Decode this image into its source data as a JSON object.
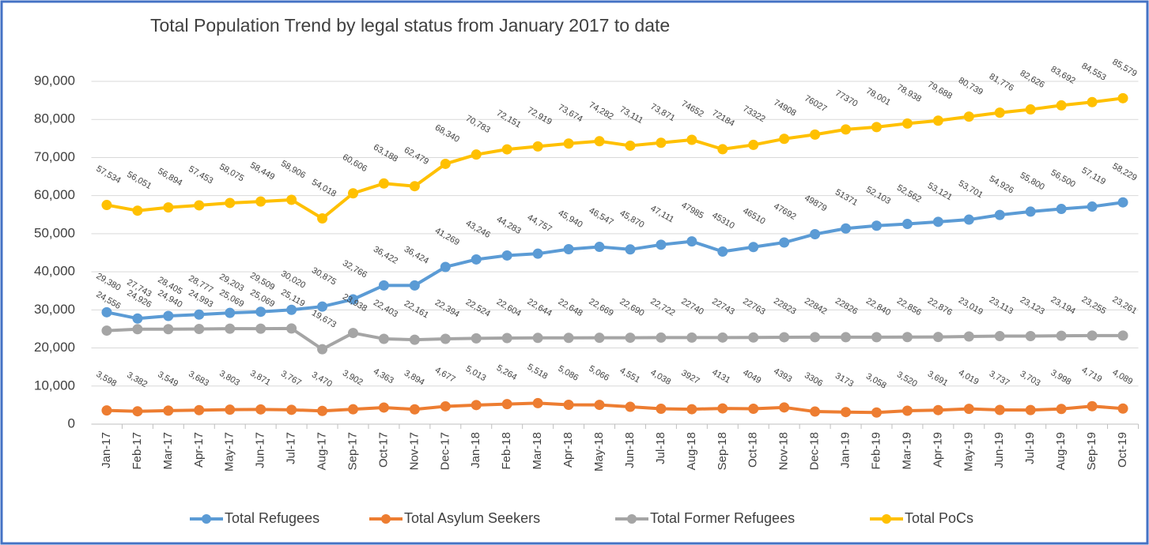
{
  "chart_data": {
    "type": "line",
    "title": "Total Population Trend by legal status from January 2017 to date",
    "categories": [
      "Jan-17",
      "Feb-17",
      "Mar-17",
      "Apr-17",
      "May-17",
      "Jun-17",
      "Jul-17",
      "Aug-17",
      "Sep-17",
      "Oct-17",
      "Nov-17",
      "Dec-17",
      "Jan-18",
      "Feb-18",
      "Mar-18",
      "Apr-18",
      "May-18",
      "Jun-18",
      "Jul-18",
      "Aug-18",
      "Sep-18",
      "Oct-18",
      "Nov-18",
      "Dec-18",
      "Jan-19",
      "Feb-19",
      "Mar-19",
      "Apr-19",
      "May-19",
      "Jun-19",
      "Jul-19",
      "Aug-19",
      "Sep-19",
      "Oct-19"
    ],
    "series": [
      {
        "name": "Total Refugees",
        "color": "#5b9bd5",
        "values": [
          29380,
          27743,
          28405,
          28777,
          29203,
          29509,
          30020,
          30875,
          32766,
          36422,
          36424,
          41269,
          43246,
          44283,
          44757,
          45940,
          46547,
          45870,
          47111,
          47985,
          45310,
          46510,
          47692,
          49879,
          51371,
          52103,
          52562,
          53121,
          53701,
          54926,
          55800,
          56500,
          57119,
          58229
        ],
        "value_labels": [
          "29,380",
          "27,743",
          "28,405",
          "28,777",
          "29,203",
          "29,509",
          "30,020",
          "30,875",
          "32,766",
          "36,422",
          "36,424",
          "41,269",
          "43,246",
          "44,283",
          "44,757",
          "45,940",
          "46,547",
          "45,870",
          "47,111",
          "47985",
          "45310",
          "46510",
          "47692",
          "49879",
          "51371",
          "52,103",
          "52,562",
          "53,121",
          "53,701",
          "54,926",
          "55,800",
          "56,500",
          "57,119",
          "58,229"
        ]
      },
      {
        "name": "Total Asylum Seekers",
        "color": "#ed7d31",
        "values": [
          3598,
          3382,
          3549,
          3683,
          3803,
          3871,
          3767,
          3470,
          3902,
          4363,
          3894,
          4677,
          5013,
          5264,
          5518,
          5086,
          5066,
          4551,
          4038,
          3927,
          4131,
          4049,
          4393,
          3306,
          3173,
          3058,
          3520,
          3691,
          4019,
          3737,
          3703,
          3998,
          4719,
          4089
        ],
        "value_labels": [
          "3,598",
          "3,382",
          "3,549",
          "3,683",
          "3,803",
          "3,871",
          "3,767",
          "3,470",
          "3,902",
          "4,363",
          "3,894",
          "4,677",
          "5,013",
          "5,264",
          "5,518",
          "5,086",
          "5,066",
          "4,551",
          "4,038",
          "3927",
          "4131",
          "4049",
          "4393",
          "3306",
          "3173",
          "3,058",
          "3,520",
          "3,691",
          "4,019",
          "3,737",
          "3,703",
          "3,998",
          "4,719",
          "4,089"
        ]
      },
      {
        "name": "Total Former Refugees",
        "color": "#a5a5a5",
        "values": [
          24556,
          24926,
          24940,
          24993,
          25069,
          25069,
          25119,
          19673,
          23938,
          22403,
          22161,
          22394,
          22524,
          22604,
          22644,
          22648,
          22669,
          22690,
          22722,
          22740,
          22743,
          22763,
          22823,
          22842,
          22826,
          22840,
          22856,
          22876,
          23019,
          23113,
          23123,
          23194,
          23255,
          23261
        ],
        "value_labels": [
          "24,556",
          "24,926",
          "24,940",
          "24,993",
          "25,069",
          "25,069",
          "25,119",
          "19,673",
          "23,938",
          "22,403",
          "22,161",
          "22,394",
          "22,524",
          "22,604",
          "22,644",
          "22,648",
          "22,669",
          "22,690",
          "22,722",
          "22740",
          "22743",
          "22763",
          "22823",
          "22842",
          "22826",
          "22,840",
          "22,856",
          "22,876",
          "23,019",
          "23,113",
          "23,123",
          "23,194",
          "23,255",
          "23,261"
        ]
      },
      {
        "name": "Total PoCs",
        "color": "#ffc000",
        "values": [
          57534,
          56051,
          56894,
          57453,
          58075,
          58449,
          58906,
          54018,
          60606,
          63188,
          62479,
          68340,
          70783,
          72151,
          72919,
          73674,
          74282,
          73111,
          73871,
          74652,
          72184,
          73322,
          74908,
          76027,
          77370,
          78001,
          78938,
          79688,
          80739,
          81776,
          82626,
          83692,
          84553,
          85579
        ],
        "value_labels": [
          "57,534",
          "56,051",
          "56,894",
          "57,453",
          "58,075",
          "58,449",
          "58,906",
          "54,018",
          "60,606",
          "63,188",
          "62,479",
          "68,340",
          "70,783",
          "72,151",
          "72,919",
          "73,674",
          "74,282",
          "73,111",
          "73,871",
          "74652",
          "72184",
          "73322",
          "74908",
          "76027",
          "77370",
          "78,001",
          "78,938",
          "79,688",
          "80,739",
          "81,776",
          "82,626",
          "83,692",
          "84,553",
          "85,579"
        ]
      }
    ],
    "ylim": [
      0,
      90000
    ],
    "yticks": [
      0,
      {
        "value": 10000,
        "label": "10,000"
      },
      {
        "value": 20000,
        "label": "20,000"
      },
      {
        "value": 30000,
        "label": "30,000"
      },
      {
        "value": 40000,
        "label": "40,000"
      },
      {
        "value": 50000,
        "label": "50,000"
      },
      {
        "value": 60000,
        "label": "60,000"
      },
      {
        "value": 70000,
        "label": "70,000"
      },
      {
        "value": 80000,
        "label": "80,000"
      },
      {
        "value": 90000,
        "label": "90,000"
      }
    ],
    "grid": true,
    "legend": "bottom"
  }
}
